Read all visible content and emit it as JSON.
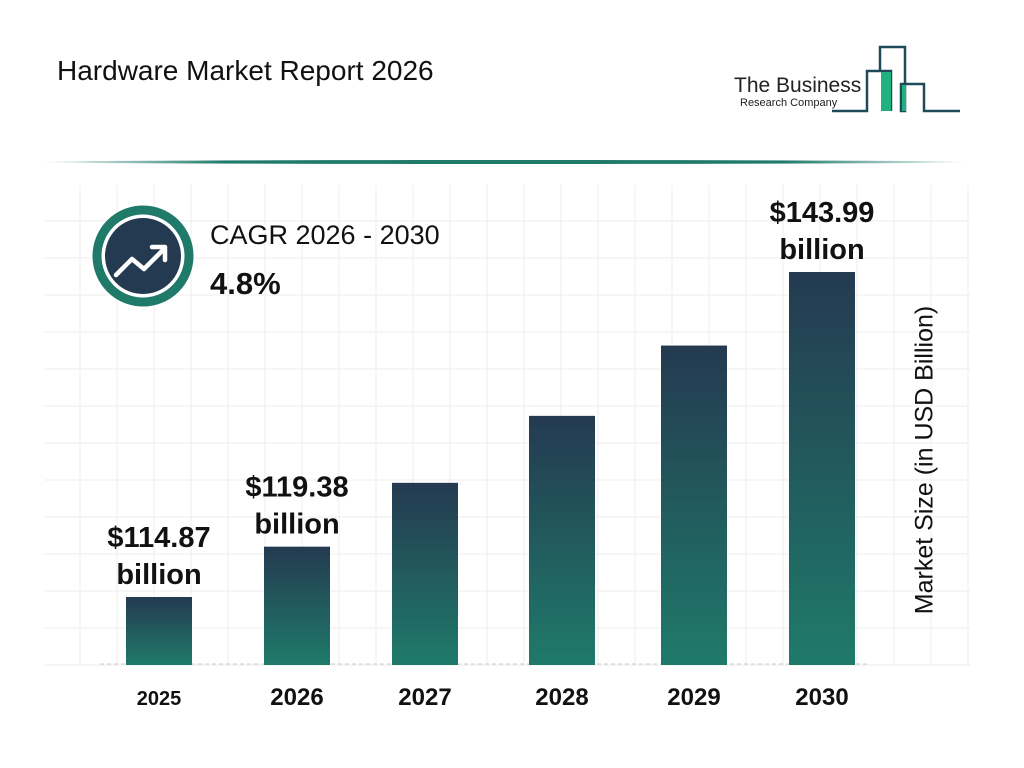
{
  "header": {
    "title": "Hardware Market Report 2026"
  },
  "logo": {
    "line1": "The Business",
    "line2": "Research Company"
  },
  "cagr": {
    "label": "CAGR 2026 - 2030",
    "value": "4.8%",
    "icon": "trending-up-icon"
  },
  "colors": {
    "bar_top": "#243a50",
    "bar_bottom": "#1f7a6a",
    "ring": "#1f7a6a",
    "icon_bg": "#243a50",
    "logo_green": "#1fb27e",
    "logo_line": "#1e4a5a"
  },
  "chart_data": {
    "type": "bar",
    "categories": [
      "2025",
      "2026",
      "2027",
      "2028",
      "2029",
      "2030"
    ],
    "values": [
      114.87,
      119.38,
      125.1,
      131.1,
      137.4,
      143.99
    ],
    "data_labels": [
      [
        "$114.87",
        "billion"
      ],
      [
        "$119.38",
        "billion"
      ],
      null,
      null,
      null,
      [
        "$143.99",
        "billion"
      ]
    ],
    "ylabel": "Market Size (in USD Billion)",
    "xlabel": "",
    "grid": true
  }
}
